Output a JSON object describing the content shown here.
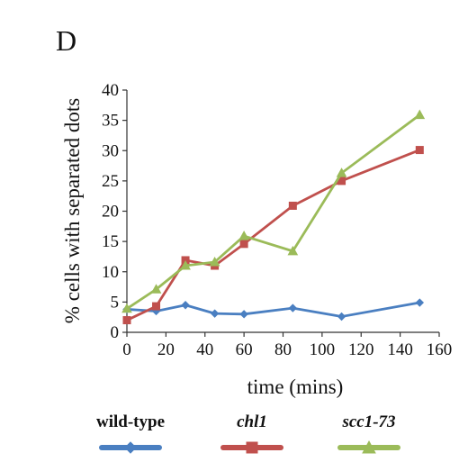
{
  "panel_label": "D",
  "chart_data": {
    "type": "line",
    "xlabel": "time (mins)",
    "ylabel": "% cells with separated dots",
    "xlim": [
      0,
      160
    ],
    "ylim": [
      0,
      40
    ],
    "xticks": [
      0,
      20,
      40,
      60,
      80,
      100,
      120,
      140,
      160
    ],
    "yticks": [
      0,
      5,
      10,
      15,
      20,
      25,
      30,
      35,
      40
    ],
    "grid": false,
    "legend_position": "bottom",
    "series": [
      {
        "name": "wild-type",
        "italic": false,
        "color": "#4a7fc1",
        "marker": "diamond",
        "x": [
          0,
          15,
          30,
          45,
          60,
          85,
          110,
          150
        ],
        "y": [
          3.8,
          3.5,
          4.5,
          3.1,
          3.0,
          4.0,
          2.6,
          4.9
        ]
      },
      {
        "name": "chl1",
        "italic": true,
        "color": "#c0504d",
        "marker": "square",
        "x": [
          0,
          15,
          30,
          45,
          60,
          85,
          110,
          150
        ],
        "y": [
          2.0,
          4.3,
          11.9,
          11.0,
          14.6,
          20.9,
          25.0,
          30.1
        ]
      },
      {
        "name": "scc1-73",
        "italic": true,
        "color": "#9bbb59",
        "marker": "triangle",
        "x": [
          0,
          15,
          30,
          45,
          60,
          85,
          110,
          150
        ],
        "y": [
          3.9,
          7.1,
          11.0,
          11.6,
          15.9,
          13.4,
          26.3,
          35.9
        ]
      }
    ]
  }
}
